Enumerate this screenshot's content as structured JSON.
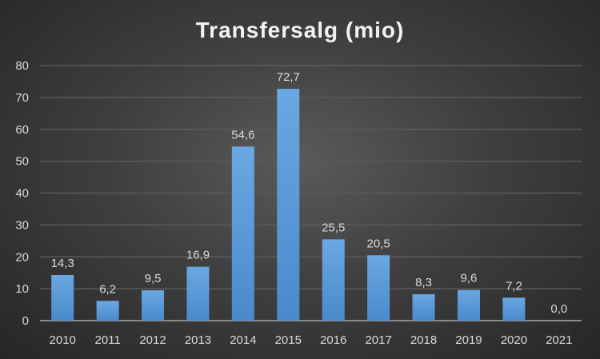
{
  "chart_data": {
    "type": "bar",
    "title": "Transfersalg (mio)",
    "categories": [
      "2010",
      "2011",
      "2012",
      "2013",
      "2014",
      "2015",
      "2016",
      "2017",
      "2018",
      "2019",
      "2020",
      "2021"
    ],
    "values": [
      14.3,
      6.2,
      9.5,
      16.9,
      54.6,
      72.7,
      25.5,
      20.5,
      8.3,
      9.6,
      7.2,
      0.0
    ],
    "data_labels": [
      "14,3",
      "6,2",
      "9,5",
      "16,9",
      "54,6",
      "72,7",
      "25,5",
      "20,5",
      "8,3",
      "9,6",
      "7,2",
      "0,0"
    ],
    "xlabel": "",
    "ylabel": "",
    "ylim": [
      0,
      80
    ],
    "yticks": [
      0,
      10,
      20,
      30,
      40,
      50,
      60,
      70,
      80
    ],
    "grid": true,
    "legend": "none",
    "bar_color": "#5b9bd5"
  }
}
